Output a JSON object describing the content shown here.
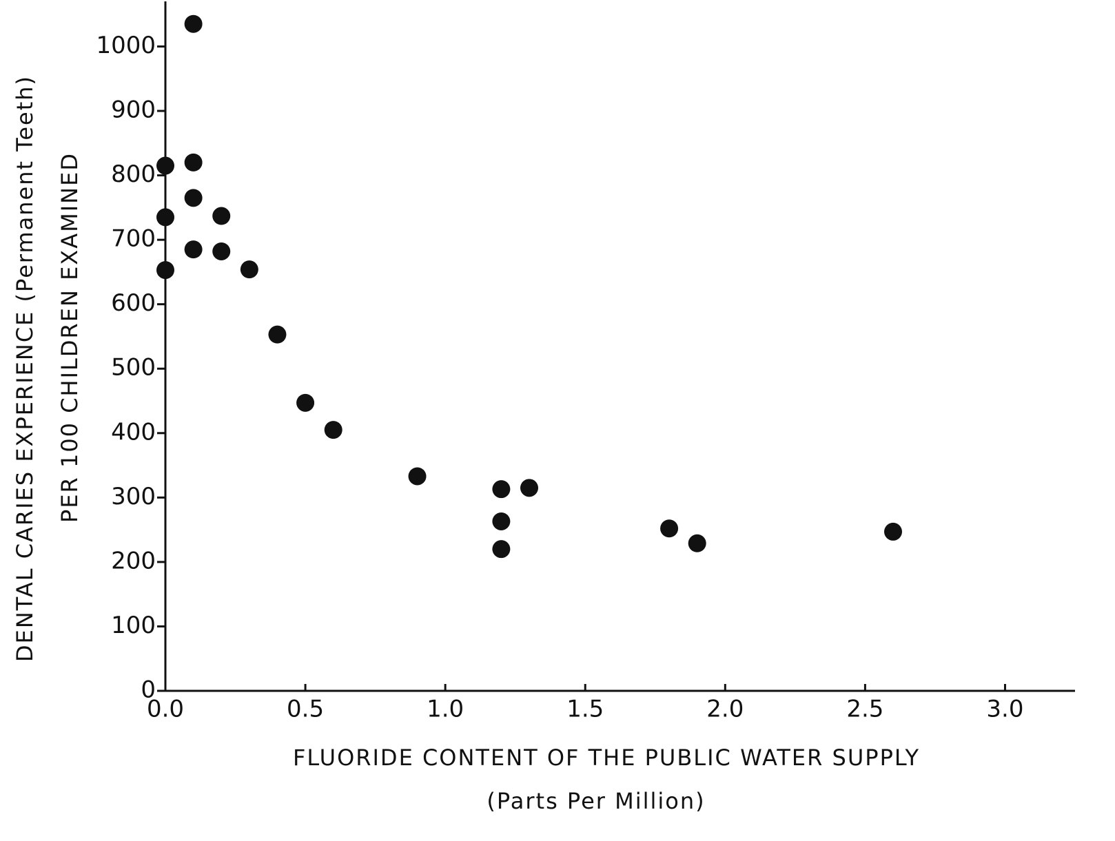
{
  "chart_data": {
    "type": "scatter",
    "xlabel": "FLUORIDE CONTENT OF THE PUBLIC WATER SUPPLY",
    "xlabel_sub": "(Parts Per Million)",
    "ylabel": "DENTAL CARIES EXPERIENCE (Permanent Teeth)",
    "ylabel_sub": "PER 100 CHILDREN EXAMINED",
    "color": "#111111",
    "x": [
      0.1,
      0.0,
      0.1,
      0.1,
      0.0,
      0.2,
      0.1,
      0.2,
      0.0,
      0.3,
      0.4,
      0.5,
      0.6,
      0.9,
      1.2,
      1.3,
      1.2,
      1.2,
      1.8,
      1.9,
      2.6
    ],
    "values": [
      1035,
      815,
      820,
      765,
      735,
      737,
      685,
      682,
      653,
      654,
      553,
      447,
      405,
      333,
      313,
      315,
      263,
      220,
      252,
      229,
      247
    ],
    "xlim": [
      0,
      3.25
    ],
    "ylim": [
      0,
      1070
    ],
    "xticks": [
      {
        "value": 0,
        "label": "0.0"
      },
      0.5,
      {
        "value": 1,
        "label": "1.0"
      },
      1.5,
      {
        "value": 2,
        "label": "2.0"
      },
      2.5,
      {
        "value": 3,
        "label": "3.0"
      }
    ],
    "yticks": [
      0,
      100,
      200,
      300,
      400,
      500,
      600,
      700,
      800,
      900,
      1000
    ],
    "grid": false
  }
}
